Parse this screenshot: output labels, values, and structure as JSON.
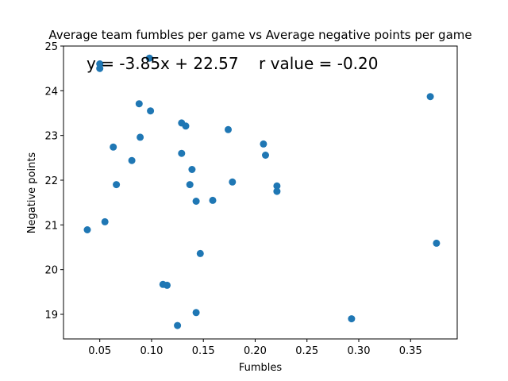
{
  "chart_data": {
    "type": "scatter",
    "title": "Average team fumbles per game vs Average negative points per game",
    "xlabel": "Fumbles",
    "ylabel": "Negative points",
    "xlim": [
      0.015,
      0.395
    ],
    "ylim": [
      18.45,
      25.0
    ],
    "xticks": [
      0.05,
      0.1,
      0.15,
      0.2,
      0.25,
      0.3,
      0.35
    ],
    "xtick_labels": [
      "0.05",
      "0.10",
      "0.15",
      "0.20",
      "0.25",
      "0.30",
      "0.35"
    ],
    "yticks": [
      19,
      20,
      21,
      22,
      23,
      24,
      25
    ],
    "ytick_labels": [
      "19",
      "20",
      "21",
      "22",
      "23",
      "24",
      "25"
    ],
    "annotation": "y = -3.85x + 22.57    r value = -0.20",
    "grid": false,
    "marker_color": "#1f77b4",
    "points": [
      {
        "x": 0.05,
        "y": 24.6
      },
      {
        "x": 0.05,
        "y": 24.5
      },
      {
        "x": 0.098,
        "y": 24.73
      },
      {
        "x": 0.088,
        "y": 23.71
      },
      {
        "x": 0.099,
        "y": 23.55
      },
      {
        "x": 0.369,
        "y": 23.87
      },
      {
        "x": 0.129,
        "y": 23.28
      },
      {
        "x": 0.133,
        "y": 23.21
      },
      {
        "x": 0.174,
        "y": 23.13
      },
      {
        "x": 0.089,
        "y": 22.96
      },
      {
        "x": 0.063,
        "y": 22.74
      },
      {
        "x": 0.208,
        "y": 22.81
      },
      {
        "x": 0.129,
        "y": 22.6
      },
      {
        "x": 0.21,
        "y": 22.56
      },
      {
        "x": 0.081,
        "y": 22.44
      },
      {
        "x": 0.139,
        "y": 22.24
      },
      {
        "x": 0.178,
        "y": 21.96
      },
      {
        "x": 0.066,
        "y": 21.9
      },
      {
        "x": 0.137,
        "y": 21.9
      },
      {
        "x": 0.221,
        "y": 21.87
      },
      {
        "x": 0.221,
        "y": 21.75
      },
      {
        "x": 0.143,
        "y": 21.53
      },
      {
        "x": 0.159,
        "y": 21.55
      },
      {
        "x": 0.055,
        "y": 21.07
      },
      {
        "x": 0.038,
        "y": 20.89
      },
      {
        "x": 0.375,
        "y": 20.59
      },
      {
        "x": 0.147,
        "y": 20.36
      },
      {
        "x": 0.111,
        "y": 19.67
      },
      {
        "x": 0.115,
        "y": 19.65
      },
      {
        "x": 0.143,
        "y": 19.04
      },
      {
        "x": 0.293,
        "y": 18.9
      },
      {
        "x": 0.125,
        "y": 18.75
      }
    ]
  }
}
